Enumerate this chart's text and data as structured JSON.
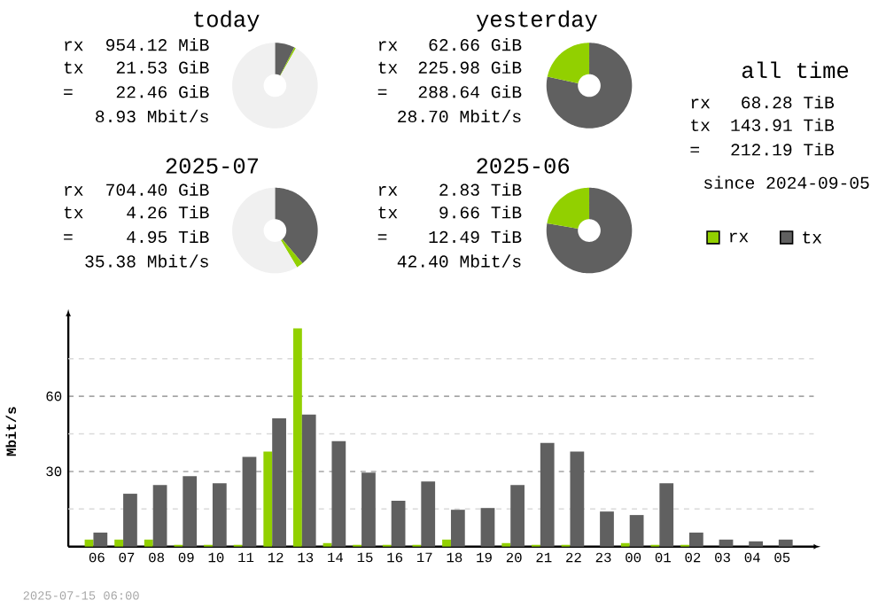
{
  "chart_data": [
    {
      "type": "donut",
      "title": "today",
      "categories": [
        null,
        null,
        null
      ],
      "values": [
        7.5,
        0.6,
        91.9
      ],
      "colors": [
        "#606060",
        "#92d000",
        "#f0f0f0"
      ],
      "annotations": [
        "rx",
        "954.12 MiB",
        "tx",
        "21.53 GiB",
        "=",
        "22.46 GiB",
        "8.93 Mbit/s"
      ]
    },
    {
      "type": "donut",
      "title": "yesterday",
      "categories": [
        null,
        null
      ],
      "values": [
        78.3,
        21.7
      ],
      "colors": [
        "#606060",
        "#92d000"
      ],
      "annotations": [
        "rx",
        "62.66 GiB",
        "tx",
        "225.98 GiB",
        "=",
        "288.64 GiB",
        "28.70 Mbit/s"
      ]
    },
    {
      "type": "other",
      "title": "all time",
      "annotations": [
        "rx",
        "68.28 TiB",
        "tx",
        "143.91 TiB",
        "=",
        "212.19 TiB",
        "since 2024-09-05"
      ]
    },
    {
      "type": "donut",
      "title": "2025-07",
      "categories": [
        null,
        null,
        null
      ],
      "values": [
        38.9,
        2.5,
        58.6
      ],
      "colors": [
        "#606060",
        "#92d000",
        "#f0f0f0"
      ],
      "annotations": [
        "rx",
        "704.40 GiB",
        "tx",
        "4.26 TiB",
        "=",
        "4.95 TiB",
        "35.38 Mbit/s"
      ]
    },
    {
      "type": "donut",
      "title": "2025-06",
      "categories": [
        null,
        null
      ],
      "values": [
        77.7,
        22.3
      ],
      "colors": [
        "#606060",
        "#92d000"
      ],
      "annotations": [
        "rx",
        "2.83 TiB",
        "tx",
        "9.66 TiB",
        "=",
        "12.49 TiB",
        "42.40 Mbit/s"
      ]
    },
    {
      "type": "bar",
      "ylabel": "Mbit/s",
      "legend": "top right",
      "grid": "y",
      "categories": [
        "06",
        "07",
        "08",
        "09",
        "10",
        "11",
        "12",
        "13",
        "14",
        "15",
        "16",
        "17",
        "18",
        "19",
        "20",
        "21",
        "22",
        "23",
        "00",
        "01",
        "02",
        "03",
        "04",
        "05"
      ],
      "ylim": [
        0,
        92
      ],
      "yticks": [
        {
          "value": 15,
          "label": null
        },
        30,
        {
          "value": 45,
          "label": null
        },
        60,
        {
          "value": 75,
          "label": null
        }
      ],
      "series": [
        {
          "name": "rx",
          "color": "#92d000",
          "values": [
            2.8,
            2.8,
            2.8,
            0.7,
            0.7,
            0.7,
            37.9,
            87.1,
            1.4,
            0.7,
            0.7,
            0.7,
            2.8,
            0,
            1.4,
            0.7,
            0.7,
            0,
            1.4,
            0.7,
            0.7,
            0,
            0,
            0
          ]
        },
        {
          "name": "tx",
          "color": "#606060",
          "values": [
            5.6,
            21.1,
            24.6,
            28.1,
            25.3,
            35.8,
            51.2,
            52.7,
            42.1,
            29.5,
            18.3,
            26.0,
            14.7,
            15.4,
            24.6,
            41.4,
            37.9,
            14.0,
            12.6,
            25.3,
            5.6,
            2.8,
            2.1,
            2.8
          ]
        }
      ],
      "annotations": [
        "2025-07-15 06:00"
      ]
    }
  ]
}
